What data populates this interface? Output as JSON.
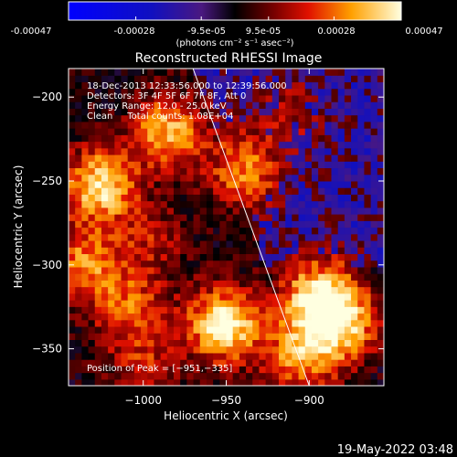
{
  "colorbar": {
    "ticks": [
      "-0.00047",
      "-0.00028",
      "-9.5e-05",
      "9.5e-05",
      "0.00028",
      "0.00047"
    ],
    "unit_label": "(photons cm⁻² s⁻¹ asec⁻²)"
  },
  "chart_data": {
    "type": "heatmap",
    "title": "Reconstructed RHESSI Image",
    "xlabel": "Heliocentric X (arcsec)",
    "ylabel": "Heliocentric Y (arcsec)",
    "xlim": [
      -1045,
      -855
    ],
    "ylim": [
      -372,
      -183
    ],
    "x_ticks": [
      -1000,
      -950,
      -900
    ],
    "y_ticks": [
      -200,
      -250,
      -300,
      -350
    ],
    "x_tick_labels": [
      "−1000",
      "−950",
      "−900"
    ],
    "y_tick_labels": [
      "−200",
      "−250",
      "−300",
      "−350"
    ],
    "value_range": [
      -0.00047,
      0.00047
    ],
    "peak_position": [
      -951,
      -335
    ],
    "hot_spots": [
      {
        "x": -951,
        "y": -335,
        "value": 0.00047
      },
      {
        "x": -1026,
        "y": -252,
        "value": 0.00042
      },
      {
        "x": -985,
        "y": -220,
        "value": 0.00036
      },
      {
        "x": -1037,
        "y": -300,
        "value": 0.0003
      },
      {
        "x": -940,
        "y": -245,
        "value": 0.00028
      },
      {
        "x": -895,
        "y": -318,
        "value": 0.0004
      },
      {
        "x": -880,
        "y": -335,
        "value": 0.00036
      },
      {
        "x": -905,
        "y": -355,
        "value": 0.0003
      },
      {
        "x": -1008,
        "y": -325,
        "value": 0.00024
      },
      {
        "x": -1000,
        "y": -360,
        "value": 0.00018
      },
      {
        "x": -995,
        "y": -285,
        "value": 0.00016
      },
      {
        "x": -912,
        "y": -210,
        "value": 0.00012
      }
    ],
    "limb_line": [
      [
        -970,
        -183
      ],
      [
        -900,
        -372
      ]
    ],
    "annotations": [
      "18-Dec-2013 12:33:56.000 to 12:39:56.000",
      "Detectors: 3F 4F 5F 6F 7F 8F, Att 0",
      "Energy Range: 12.0 - 25.0 keV",
      "Clean     Total counts: 1.08E+04"
    ],
    "peak_label": "Position of Peak = [−951,−335]"
  },
  "timestamp": "19-May-2022 03:48"
}
